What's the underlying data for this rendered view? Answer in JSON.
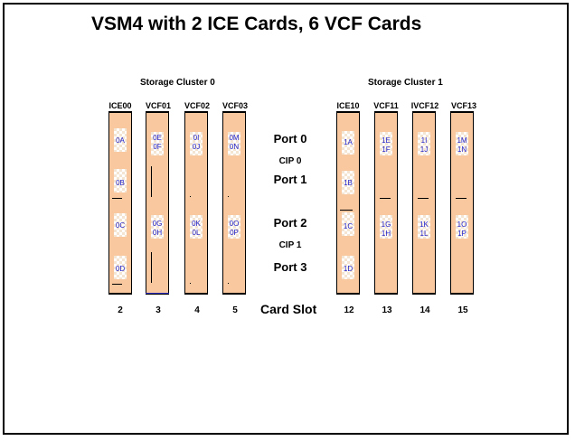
{
  "title": "VSM4 with 2 ICE Cards, 6 VCF Cards",
  "clusters": [
    "Storage Cluster 0",
    "Storage Cluster 1"
  ],
  "center": {
    "port0": "Port 0",
    "cip0": "CIP 0",
    "port1": "Port 1",
    "port2": "Port 2",
    "cip1": "CIP 1",
    "port3": "Port 3",
    "card_slot": "Card Slot"
  },
  "cards": [
    {
      "label": "ICE00",
      "slot": "2",
      "ports": [
        "0A",
        "0B",
        "0C",
        "0D"
      ]
    },
    {
      "label": "VCF01",
      "slot": "3",
      "ports": [
        "0E\n0F",
        "0G\n0H"
      ]
    },
    {
      "label": "VCF02",
      "slot": "4",
      "ports": [
        "0I\n0J",
        "0K\n0L"
      ]
    },
    {
      "label": "VCF03",
      "slot": "5",
      "ports": [
        "0M\n0N",
        "0O\n0P"
      ]
    },
    {
      "label": "ICE10",
      "slot": "12",
      "ports": [
        "1A",
        "1B",
        "1C",
        "1D"
      ]
    },
    {
      "label": "VCF11",
      "slot": "13",
      "ports": [
        "1E\n1F",
        "1G\n1H"
      ]
    },
    {
      "label": "IVCF12",
      "slot": "14",
      "ports": [
        "1I\n1J",
        "1K\n1L"
      ]
    },
    {
      "label": "VCF13",
      "slot": "15",
      "ports": [
        "1M\n1N",
        "1O\n1P"
      ]
    }
  ],
  "colors": {
    "card": "#f9c89e",
    "port_text": "#2020c8",
    "border": "#000000"
  }
}
